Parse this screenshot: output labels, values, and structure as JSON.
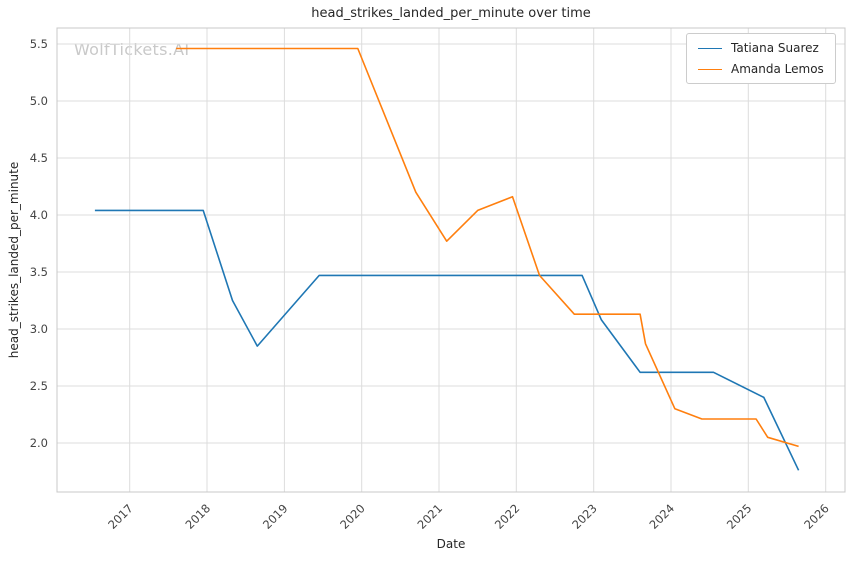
{
  "watermark": "WolfTickets.AI",
  "chart_data": {
    "type": "line",
    "title": "head_strikes_landed_per_minute over time",
    "xlabel": "Date",
    "ylabel": "head_strikes_landed_per_minute",
    "grid": true,
    "legend_position": "upper right",
    "x_domain": [
      2016.06,
      2026.25
    ],
    "y_domain": [
      1.57,
      5.64
    ],
    "x_ticks": [
      2017,
      2018,
      2019,
      2020,
      2021,
      2022,
      2023,
      2024,
      2025,
      2026
    ],
    "y_ticks": [
      2.0,
      2.5,
      3.0,
      3.5,
      4.0,
      4.5,
      5.0,
      5.5
    ],
    "series": [
      {
        "name": "Tatiana Suarez",
        "color": "#1f77b4",
        "points": [
          [
            2016.55,
            4.04
          ],
          [
            2017.95,
            4.04
          ],
          [
            2018.33,
            3.25
          ],
          [
            2018.65,
            2.85
          ],
          [
            2019.45,
            3.47
          ],
          [
            2022.85,
            3.47
          ],
          [
            2023.1,
            3.08
          ],
          [
            2023.6,
            2.62
          ],
          [
            2024.55,
            2.62
          ],
          [
            2025.2,
            2.4
          ],
          [
            2025.65,
            1.76
          ]
        ]
      },
      {
        "name": "Amanda Lemos",
        "color": "#ff7f0e",
        "points": [
          [
            2017.6,
            5.46
          ],
          [
            2019.95,
            5.46
          ],
          [
            2020.7,
            4.2
          ],
          [
            2021.1,
            3.77
          ],
          [
            2021.5,
            4.04
          ],
          [
            2021.95,
            4.16
          ],
          [
            2022.3,
            3.47
          ],
          [
            2022.75,
            3.13
          ],
          [
            2023.6,
            3.13
          ],
          [
            2023.67,
            2.87
          ],
          [
            2024.05,
            2.3
          ],
          [
            2024.4,
            2.21
          ],
          [
            2025.1,
            2.21
          ],
          [
            2025.25,
            2.05
          ],
          [
            2025.65,
            1.97
          ]
        ]
      }
    ],
    "colors": {
      "grid": "#dcdcdc",
      "frame": "#c8c8c8",
      "text": "#262626",
      "tick_text": "#444444",
      "watermark": "#c9c9c9"
    }
  }
}
